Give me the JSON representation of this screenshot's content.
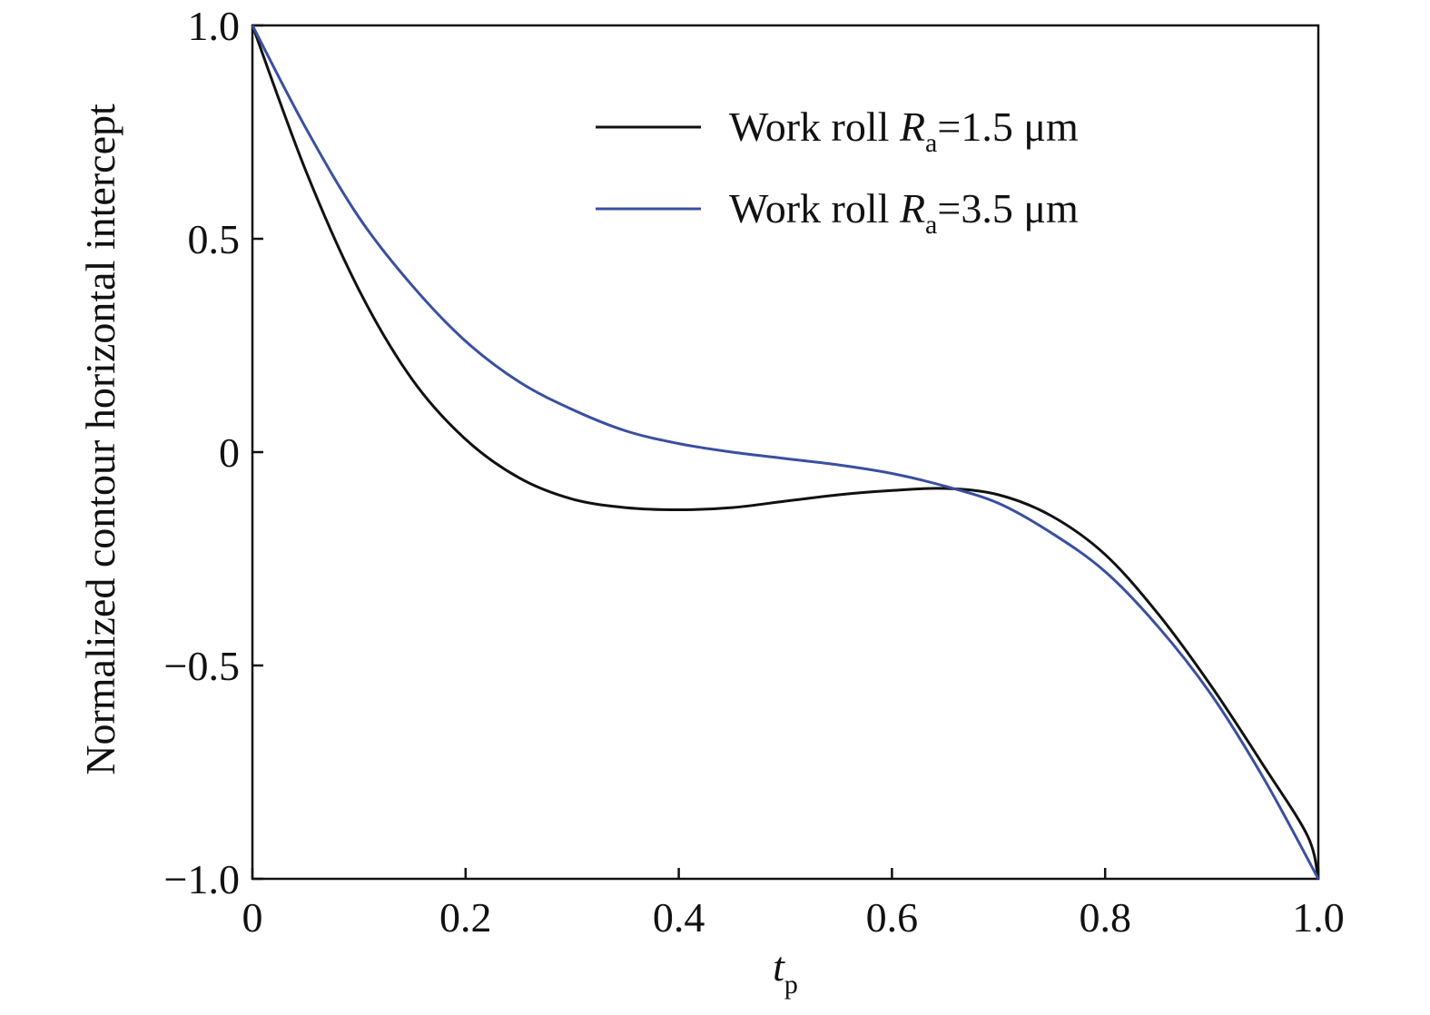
{
  "chart_data": {
    "type": "line",
    "title": "",
    "xlabel": {
      "main": "t",
      "sub": "p"
    },
    "ylabel": "Normalized contour horizontal intercept",
    "xlim": [
      0,
      1.0
    ],
    "ylim": [
      -1.0,
      1.0
    ],
    "x_ticks": [
      {
        "value": 0,
        "label": "0"
      },
      {
        "value": 0.2,
        "label": "0.2"
      },
      {
        "value": 0.4,
        "label": "0.4"
      },
      {
        "value": 0.6,
        "label": "0.6"
      },
      {
        "value": 0.8,
        "label": "0.8"
      },
      {
        "value": 1.0,
        "label": "1.0"
      }
    ],
    "y_ticks": [
      {
        "value": 1.0,
        "label": "1.0"
      },
      {
        "value": 0.5,
        "label": "0.5"
      },
      {
        "value": 0,
        "label": "0"
      },
      {
        "value": -0.5,
        "label": "−0.5"
      },
      {
        "value": -1.0,
        "label": "−1.0"
      }
    ],
    "grid": false,
    "legend_position": "top-right",
    "series": [
      {
        "legend": {
          "prefix": "Work roll ",
          "symbol": "R",
          "sub": "a",
          "suffix": "=1.5 μm"
        },
        "color": "#111111",
        "x": [
          0,
          0.05,
          0.1,
          0.15,
          0.2,
          0.25,
          0.3,
          0.35,
          0.4,
          0.45,
          0.5,
          0.55,
          0.6,
          0.65,
          0.7,
          0.75,
          0.8,
          0.85,
          0.9,
          0.95,
          0.99,
          1.0
        ],
        "y": [
          1.0,
          0.66,
          0.38,
          0.17,
          0.03,
          -0.06,
          -0.11,
          -0.13,
          -0.135,
          -0.13,
          -0.115,
          -0.1,
          -0.09,
          -0.085,
          -0.1,
          -0.15,
          -0.24,
          -0.38,
          -0.55,
          -0.74,
          -0.9,
          -1.0
        ]
      },
      {
        "legend": {
          "prefix": "Work roll ",
          "symbol": "R",
          "sub": "a",
          "suffix": "=3.5 μm"
        },
        "color": "#3a4fa0",
        "x": [
          0,
          0.05,
          0.1,
          0.15,
          0.2,
          0.25,
          0.3,
          0.35,
          0.4,
          0.45,
          0.5,
          0.55,
          0.6,
          0.65,
          0.7,
          0.75,
          0.8,
          0.85,
          0.9,
          0.95,
          1.0
        ],
        "y": [
          1.0,
          0.76,
          0.55,
          0.39,
          0.26,
          0.165,
          0.1,
          0.05,
          0.02,
          0.0,
          -0.015,
          -0.03,
          -0.05,
          -0.08,
          -0.12,
          -0.19,
          -0.28,
          -0.41,
          -0.57,
          -0.77,
          -1.0
        ]
      }
    ]
  }
}
